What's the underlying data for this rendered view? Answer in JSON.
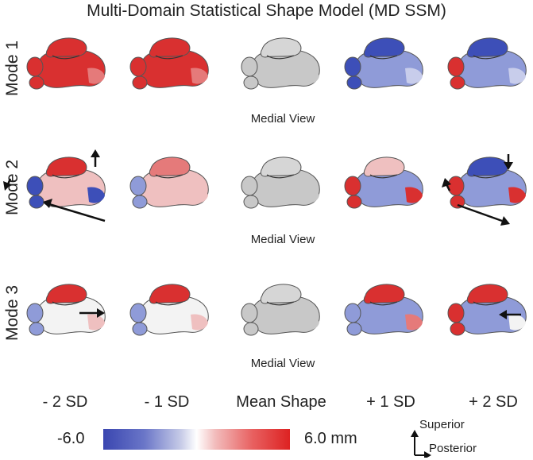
{
  "title": "Multi-Domain Statistical Shape Model (MD SSM)",
  "rows": [
    {
      "label": "Mode 1",
      "view": "Medial View"
    },
    {
      "label": "Mode 2",
      "view": "Medial View"
    },
    {
      "label": "Mode 3",
      "view": "Medial View"
    }
  ],
  "columns": [
    "- 2 SD",
    "- 1 SD",
    "Mean Shape",
    "+ 1 SD",
    "+ 2 SD"
  ],
  "colorbar": {
    "min_label": "-6.0",
    "max_label": "6.0 mm",
    "low_color": "#3a46b0",
    "mid_color": "#ffffff",
    "high_color": "#dd2222"
  },
  "orientation": {
    "up": "Superior",
    "right": "Posterior"
  }
}
